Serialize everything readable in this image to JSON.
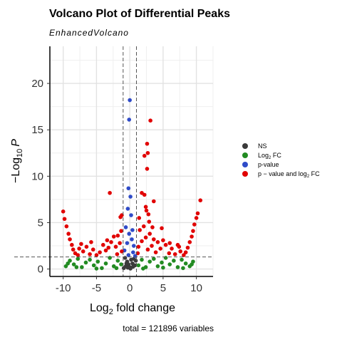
{
  "chart_data": {
    "type": "scatter",
    "title": "Volcano Plot of Differential Peaks",
    "subtitle": "EnhancedVolcano",
    "xlabel": {
      "base": "Log",
      "sub": "2",
      "rest": " fold change"
    },
    "ylabel": {
      "base": "−Log",
      "sub": "10",
      "rest": "P"
    },
    "caption": "total = 121896 variables",
    "xlim": [
      -12,
      12.5
    ],
    "ylim": [
      -0.8,
      24
    ],
    "x_ticks": [
      -10,
      -5,
      0,
      5,
      10
    ],
    "x_tick_labels": [
      "-10",
      "-5",
      "0",
      "5",
      "10"
    ],
    "y_ticks": [
      0,
      5,
      10,
      15,
      20
    ],
    "y_tick_labels": [
      "0",
      "5",
      "10",
      "15",
      "20"
    ],
    "fc_cutoffs": [
      -1,
      1
    ],
    "p_cutoff": 1.3,
    "grid": true,
    "legend_position": "right",
    "legend": [
      {
        "key": "ns",
        "label": "NS",
        "color": "#3a3a3a"
      },
      {
        "key": "log2fc",
        "label": "Log",
        "sub": "2",
        "rest": " FC",
        "color": "#228b22"
      },
      {
        "key": "pval",
        "label": "p-value",
        "color": "#2f4bc8"
      },
      {
        "key": "both",
        "label": "p − value and log",
        "sub": "2",
        "rest": " FC",
        "color": "#e10000"
      }
    ],
    "series": [
      {
        "name": "NS",
        "color": "#3a3a3a",
        "points": [
          [
            -0.9,
            0.1
          ],
          [
            -0.6,
            0.3
          ],
          [
            -0.4,
            0.8
          ],
          [
            -0.2,
            0.5
          ],
          [
            0,
            0.2
          ],
          [
            0.2,
            1
          ],
          [
            0.4,
            0.6
          ],
          [
            0.6,
            1.1
          ],
          [
            0.8,
            0.4
          ],
          [
            -0.7,
            1.2
          ],
          [
            0.1,
            0.05
          ],
          [
            -0.3,
            0.15
          ],
          [
            0.5,
            0.25
          ],
          [
            0.9,
            0.9
          ],
          [
            -0.5,
            0.6
          ]
        ]
      },
      {
        "name": "Log2 FC",
        "color": "#228b22",
        "points": [
          [
            -9.6,
            0.3
          ],
          [
            -9,
            0.9
          ],
          [
            -8.4,
            0.5
          ],
          [
            -7.8,
            1.1
          ],
          [
            -7.2,
            0.2
          ],
          [
            -6.6,
            0.7
          ],
          [
            -6,
            1
          ],
          [
            -5.4,
            0.4
          ],
          [
            -4.8,
            0.8
          ],
          [
            -4.2,
            0.1
          ],
          [
            -3.6,
            0.6
          ],
          [
            -3,
            1.2
          ],
          [
            -2.4,
            0.3
          ],
          [
            -1.8,
            0.9
          ],
          [
            -1.3,
            0.5
          ],
          [
            1.3,
            0.4
          ],
          [
            1.8,
            1
          ],
          [
            2.4,
            0.2
          ],
          [
            3,
            0.8
          ],
          [
            3.6,
            1.1
          ],
          [
            4.2,
            0.3
          ],
          [
            4.8,
            0.7
          ],
          [
            5.4,
            1.2
          ],
          [
            6,
            0.5
          ],
          [
            6.6,
            0.9
          ],
          [
            7.2,
            0.2
          ],
          [
            7.8,
            1
          ],
          [
            8.4,
            0.6
          ],
          [
            9,
            0.3
          ],
          [
            9.5,
            0.8
          ],
          [
            -9.3,
            0.6
          ],
          [
            -8,
            0.2
          ],
          [
            -5,
            0.05
          ],
          [
            -2,
            0.1
          ],
          [
            2,
            0.05
          ],
          [
            5,
            0.15
          ],
          [
            8,
            0.1
          ],
          [
            9.3,
            0.5
          ]
        ]
      },
      {
        "name": "p-value",
        "color": "#2f4bc8",
        "points": [
          [
            0,
            18.2
          ],
          [
            -0.1,
            16.1
          ],
          [
            -0.2,
            8.7
          ],
          [
            0.1,
            7.8
          ],
          [
            -0.3,
            6.5
          ],
          [
            0.2,
            5.8
          ],
          [
            -0.6,
            4.5
          ],
          [
            0.4,
            4.2
          ],
          [
            -0.1,
            3.8
          ],
          [
            0.3,
            3.2
          ],
          [
            -0.4,
            2.8
          ],
          [
            0.6,
            2.5
          ],
          [
            -0.8,
            2
          ],
          [
            0.5,
            1.8
          ],
          [
            -0.2,
            1.5
          ],
          [
            0.8,
            1.4
          ]
        ]
      },
      {
        "name": "p-value and log2 FC",
        "color": "#e10000",
        "points": [
          [
            3.1,
            16
          ],
          [
            2.6,
            13.5
          ],
          [
            2.2,
            12.2
          ],
          [
            2.7,
            12.5
          ],
          [
            2.6,
            10.8
          ],
          [
            -3,
            8.2
          ],
          [
            1.8,
            8.2
          ],
          [
            2.2,
            8
          ],
          [
            3.6,
            7.3
          ],
          [
            10.6,
            7.4
          ],
          [
            2.4,
            6.7
          ],
          [
            2.5,
            6.3
          ],
          [
            2.8,
            5.9
          ],
          [
            -10,
            6.2
          ],
          [
            -1.4,
            5.6
          ],
          [
            -1.2,
            5.8
          ],
          [
            1.4,
            5.5
          ],
          [
            10.2,
            6
          ],
          [
            -9.8,
            5.4
          ],
          [
            -9.5,
            4.6
          ],
          [
            -9.2,
            3.8
          ],
          [
            -9,
            3.2
          ],
          [
            -8.7,
            2.6
          ],
          [
            -8.5,
            2.1
          ],
          [
            -8.2,
            1.7
          ],
          [
            -7.8,
            1.5
          ],
          [
            -7.6,
            2.2
          ],
          [
            -7,
            1.9
          ],
          [
            -6.5,
            2.4
          ],
          [
            -6,
            1.6
          ],
          [
            -5.5,
            2.1
          ],
          [
            -5,
            1.5
          ],
          [
            -4.5,
            1.8
          ],
          [
            -4,
            2.6
          ],
          [
            -3.6,
            2
          ],
          [
            -3.2,
            2.3
          ],
          [
            -2.8,
            2.9
          ],
          [
            -2.4,
            3.5
          ],
          [
            -2.1,
            2.4
          ],
          [
            -1.8,
            3.6
          ],
          [
            -1.5,
            2.8
          ],
          [
            -1.2,
            1.9
          ],
          [
            -1.3,
            4.1
          ],
          [
            -1.9,
            1.6
          ],
          [
            -3.4,
            3.1
          ],
          [
            -5.8,
            2.9
          ],
          [
            -7.3,
            2.7
          ],
          [
            10,
            5.5
          ],
          [
            9.7,
            4.8
          ],
          [
            9.5,
            4.1
          ],
          [
            9.3,
            3.5
          ],
          [
            9,
            2.9
          ],
          [
            8.7,
            2.3
          ],
          [
            8.4,
            1.8
          ],
          [
            8.1,
            1.5
          ],
          [
            7.6,
            1.9
          ],
          [
            7.2,
            2.6
          ],
          [
            6.8,
            1.6
          ],
          [
            6.3,
            2.2
          ],
          [
            5.9,
            1.7
          ],
          [
            5.4,
            2.6
          ],
          [
            5,
            3.1
          ],
          [
            4.6,
            2.2
          ],
          [
            4.2,
            2.9
          ],
          [
            3.9,
            1.8
          ],
          [
            3.6,
            3.2
          ],
          [
            3.3,
            2.5
          ],
          [
            3,
            3.8
          ],
          [
            2.7,
            2.1
          ],
          [
            2.4,
            3.4
          ],
          [
            2.1,
            4.6
          ],
          [
            1.8,
            3
          ],
          [
            1.5,
            4.2
          ],
          [
            1.3,
            2.4
          ],
          [
            1.2,
            1.7
          ],
          [
            4.8,
            4.4
          ],
          [
            6,
            2.8
          ],
          [
            7.4,
            2.4
          ],
          [
            3.4,
            4.5
          ],
          [
            2.9,
            5.1
          ]
        ]
      }
    ]
  }
}
